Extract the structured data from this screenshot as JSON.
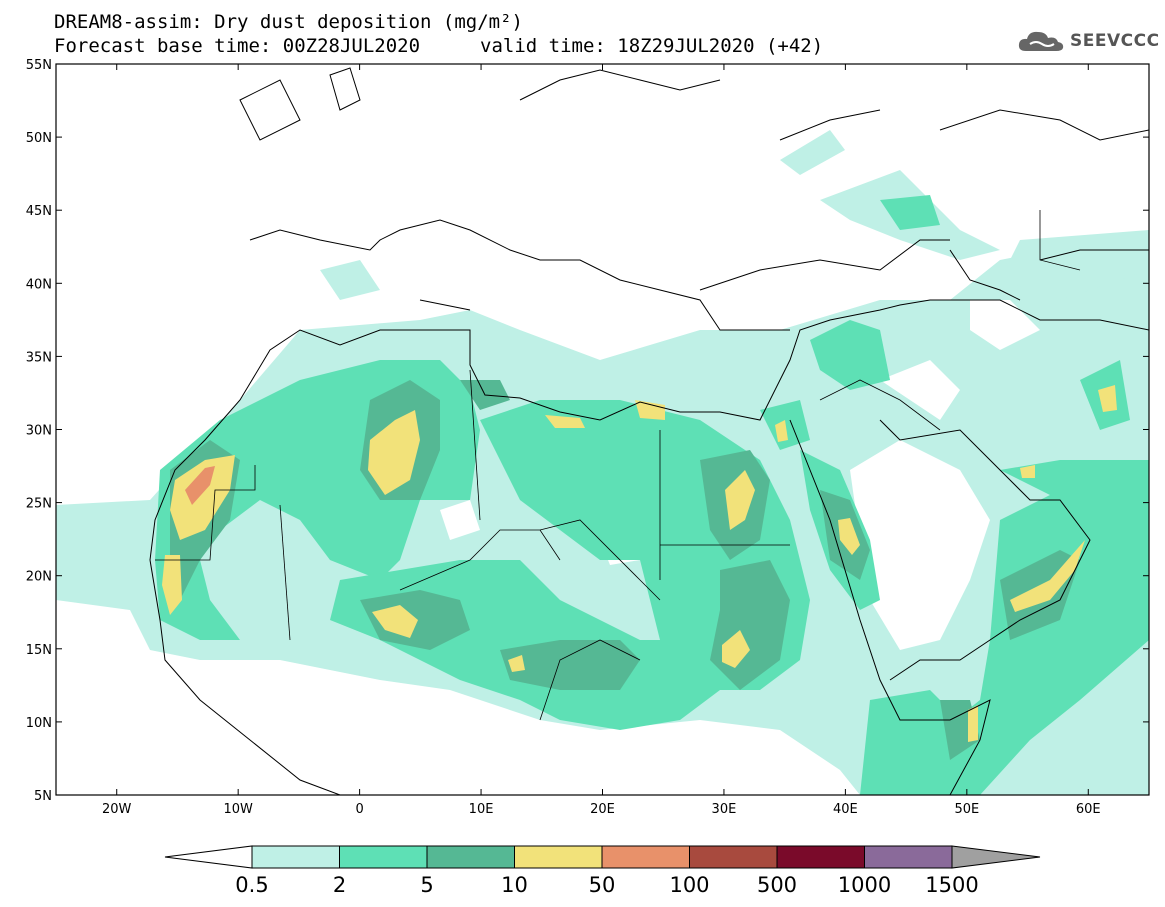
{
  "header": {
    "title": "DREAM8-assim: Dry dust deposition (mg/m²)",
    "base_time": "Forecast base time: 00Z28JUL2020",
    "valid_time": "valid time: 18Z29JUL2020 (+42)"
  },
  "logo": {
    "text": "SEEVCCC",
    "icon": "cloud-icon"
  },
  "map": {
    "lon_range": [
      -25,
      65
    ],
    "lat_range": [
      5,
      55
    ],
    "lat_ticks": [
      "55N",
      "50N",
      "45N",
      "40N",
      "35N",
      "30N",
      "25N",
      "20N",
      "15N",
      "10N",
      "5N"
    ],
    "lon_ticks": [
      "20W",
      "10W",
      "0",
      "10E",
      "20E",
      "30E",
      "40E",
      "50E",
      "60E"
    ]
  },
  "colorbar": {
    "labels": [
      "0.5",
      "2",
      "5",
      "10",
      "50",
      "100",
      "500",
      "1000",
      "1500"
    ],
    "colors": [
      "#bff0e6",
      "#5ee0b5",
      "#55b894",
      "#f2e27a",
      "#e8916a",
      "#a84a3e",
      "#7a0a2a",
      "#8a6a9a"
    ],
    "under_color": "#ffffff",
    "over_color": "#a0a0a0"
  },
  "colors": {
    "level1": "#bff0e6",
    "level2": "#5ee0b5",
    "level3": "#55b894",
    "level4": "#f2e27a",
    "level5": "#e8916a",
    "coast": "#000000"
  }
}
